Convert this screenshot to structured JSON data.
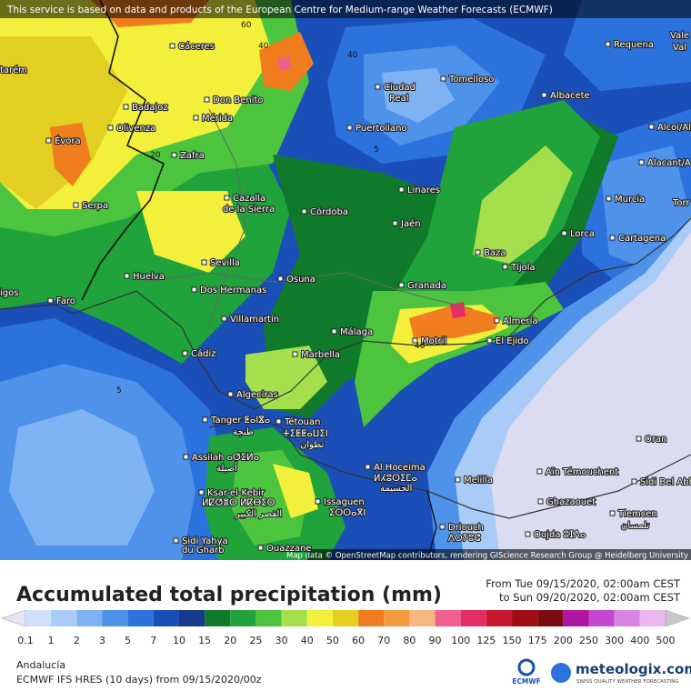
{
  "header": {
    "notice": "This service is based on data and products of the European Centre for Medium-range Weather Forecasts (ECMWF)"
  },
  "map": {
    "labels": [
      "Cáceres",
      "Don Benito",
      "Mérida",
      "Badajoz",
      "Olivenza",
      "Zafra",
      "Évora",
      "Serpa",
      "Cazalla",
      "de la Sierra",
      "Córdoba",
      "Sevilla",
      "Huelva",
      "Dos Hermanas",
      "Osuna",
      "Faro",
      "Villamartín",
      "Cádiz",
      "Málaga",
      "Marbella",
      "Algeciras",
      "Tanger ⵟⴰⵏⴵⴰ",
      "طنجة",
      "Tétouan",
      "ⵜⵉⵟⵟⴰⵡⵉⵏ",
      "تطوان",
      "Assilah ⴰⵚⵉⵍⴰ",
      "أصيلة",
      "Ksar-el-Kebir",
      "ⵍⵇⵚⴻⵔ ⵍⴽⴱⵉⵔ",
      "القصر الكبير",
      "Sidi Yahya",
      "du Gharb",
      "Ouazzane",
      "Issaguen",
      "ⵉⵙⵙⴰⴳⵏ",
      "Al Hoceima",
      "ⵍⵃⵓⵙⵉⵎⴰ",
      "الحسيمة",
      "Melilla",
      "Driouch",
      "ⴷⵔⵢⵓⵛ",
      "Oujda ⵓⵊⴷⴰ",
      "Ghazaouet",
      "Tlemcen",
      "تلمسان",
      "Aïn Témouchent",
      "Oran",
      "Sidi Bel Abbès",
      "Motril",
      "El Ejido",
      "Almería",
      "Granada",
      "Jaén",
      "Linares",
      "Baza",
      "Tíjola",
      "Lorca",
      "Murcia",
      "Cartagena",
      "Alacant/Alicante",
      "Alcoi/Alcoy",
      "Albacete",
      "Tomelloso",
      "Ciudad",
      "Real",
      "Puertollano",
      "Requena",
      "Vale",
      "Val",
      "tarém",
      "igos",
      "Torr"
    ],
    "contour_labels": [
      60,
      40,
      40,
      20,
      5,
      5,
      40
    ],
    "attribution": "Map data © OpenStreetMap contributors, rendering GIScience Research Group @ Heidelberg University"
  },
  "legend": {
    "title": "Accumulated total precipitation (mm)",
    "period_from": "From Tue 09/15/2020, 02:00am CEST",
    "period_to": "to Sun 09/20/2020, 02:00am CEST",
    "levels": [
      0.1,
      1,
      2,
      3,
      5,
      7,
      10,
      15,
      20,
      25,
      30,
      40,
      50,
      60,
      70,
      80,
      90,
      100,
      125,
      150,
      175,
      200,
      250,
      300,
      400,
      500
    ],
    "colors": [
      "#e4e4f6",
      "#cfe0fb",
      "#a9cbf8",
      "#7fb2f3",
      "#4f92ea",
      "#2c72dc",
      "#1a4fb8",
      "#163a8c",
      "#0f7a2a",
      "#1fa33a",
      "#4cc43e",
      "#a6df4e",
      "#f2f03a",
      "#e2cf22",
      "#f07d1e",
      "#f49a3e",
      "#f6b67e",
      "#f0608e",
      "#e42c66",
      "#c81830",
      "#a00e14",
      "#7a0a12",
      "#b014a0",
      "#c448d4",
      "#d884e2",
      "#eab8ee",
      "#c8c8c8"
    ]
  },
  "footer": {
    "region": "Andalucía",
    "model": "ECMWF IFS HRES (10 days) from 09/15/2020/00z",
    "logo": "ECMWF",
    "brand": "meteologix.com",
    "tagline": "SWISS QUALITY WEATHER FORECASTING"
  }
}
